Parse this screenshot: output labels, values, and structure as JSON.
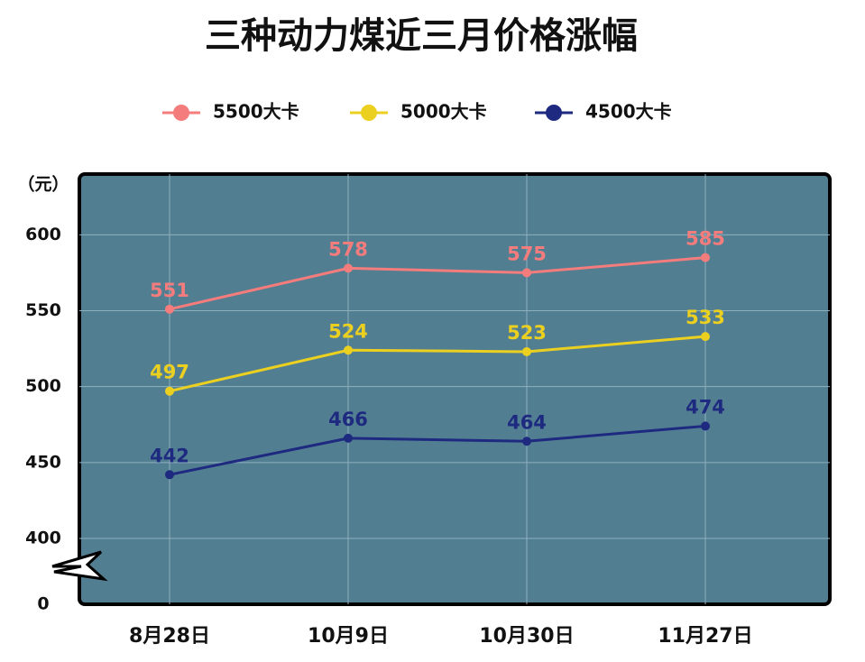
{
  "chart_data": {
    "type": "line",
    "title": "三种动力煤近三月价格涨幅",
    "y_label": "（元）",
    "categories": [
      "8月28日",
      "10月9日",
      "10月30日",
      "11月27日"
    ],
    "series": [
      {
        "name": "5500大卡",
        "color": "#f47c7c",
        "values": [
          551,
          578,
          575,
          585
        ]
      },
      {
        "name": "5000大卡",
        "color": "#ecd020",
        "values": [
          497,
          524,
          523,
          533
        ]
      },
      {
        "name": "4500大卡",
        "color": "#1e2a80",
        "values": [
          442,
          466,
          464,
          474
        ]
      }
    ],
    "ylim": [
      0,
      640
    ],
    "yticks": [
      0,
      400,
      450,
      500,
      550,
      600
    ],
    "y_axis_break": true,
    "grid": true,
    "plot_background": "#527e92"
  }
}
